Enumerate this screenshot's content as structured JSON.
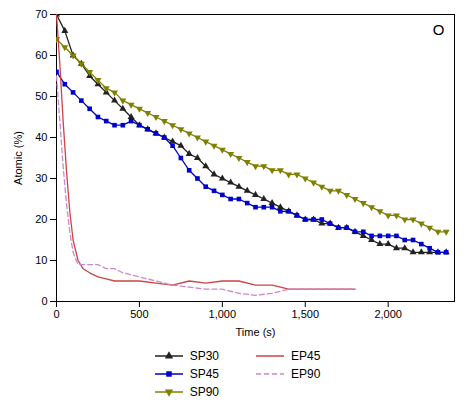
{
  "chart_data": {
    "type": "line",
    "annotation": "O",
    "xlabel": "Time (s)",
    "ylabel": "Atomic (%)",
    "xlim": [
      0,
      2400
    ],
    "ylim": [
      0,
      70
    ],
    "xticks": [
      0,
      500,
      1000,
      1500,
      2000
    ],
    "yticks": [
      0,
      10,
      20,
      30,
      40,
      50,
      60,
      70
    ],
    "grid": false,
    "legend": "bottom",
    "series": [
      {
        "name": "SP30",
        "color": "#222222",
        "marker": "triangle-up",
        "line_style": "solid",
        "x": [
          0,
          50,
          100,
          150,
          200,
          250,
          300,
          350,
          400,
          450,
          500,
          550,
          600,
          650,
          700,
          750,
          800,
          850,
          900,
          950,
          1000,
          1050,
          1100,
          1150,
          1200,
          1250,
          1300,
          1350,
          1400,
          1450,
          1500,
          1550,
          1600,
          1650,
          1700,
          1750,
          1800,
          1850,
          1900,
          1950,
          2000,
          2050,
          2100,
          2150,
          2200,
          2250,
          2300,
          2350
        ],
        "values": [
          70,
          66,
          60,
          58,
          55,
          53,
          51,
          49,
          47,
          45,
          43,
          42,
          41,
          40,
          39,
          38,
          36,
          35,
          33,
          31,
          30,
          29,
          28,
          27,
          26,
          25,
          24,
          23,
          22,
          21,
          20,
          20,
          19,
          19,
          18,
          18,
          17,
          16,
          15,
          14,
          14,
          13,
          13,
          12,
          12,
          12,
          12,
          12
        ]
      },
      {
        "name": "SP45",
        "color": "#0000cc",
        "marker": "square",
        "line_style": "solid",
        "x": [
          0,
          50,
          100,
          150,
          200,
          250,
          300,
          350,
          400,
          450,
          500,
          550,
          600,
          650,
          700,
          750,
          800,
          850,
          900,
          950,
          1000,
          1050,
          1100,
          1150,
          1200,
          1250,
          1300,
          1350,
          1400,
          1450,
          1500,
          1550,
          1600,
          1650,
          1700,
          1750,
          1800,
          1850,
          1900,
          1950,
          2000,
          2050,
          2100,
          2150,
          2200,
          2250,
          2300,
          2350
        ],
        "values": [
          56,
          53,
          51,
          49,
          47,
          45,
          44,
          43,
          43,
          44,
          43,
          42,
          41,
          40,
          38,
          35,
          32,
          30,
          28,
          27,
          26,
          25,
          25,
          24,
          23,
          23,
          23,
          22,
          22,
          21,
          20,
          20,
          20,
          19,
          18,
          18,
          17,
          17,
          16,
          16,
          16,
          16,
          15,
          15,
          14,
          13,
          12,
          12
        ]
      },
      {
        "name": "SP90",
        "color": "#808000",
        "marker": "triangle-down",
        "line_style": "solid",
        "x": [
          0,
          50,
          100,
          150,
          200,
          250,
          300,
          350,
          400,
          450,
          500,
          550,
          600,
          650,
          700,
          750,
          800,
          850,
          900,
          950,
          1000,
          1050,
          1100,
          1150,
          1200,
          1250,
          1300,
          1350,
          1400,
          1450,
          1500,
          1550,
          1600,
          1650,
          1700,
          1750,
          1800,
          1850,
          1900,
          1950,
          2000,
          2050,
          2100,
          2150,
          2200,
          2250,
          2300,
          2350
        ],
        "values": [
          64,
          62,
          60,
          58,
          56,
          54,
          52,
          51,
          49,
          48,
          47,
          46,
          45,
          44,
          43,
          42,
          41,
          40,
          39,
          38,
          37,
          36,
          35,
          34,
          33,
          33,
          32,
          32,
          31,
          31,
          30,
          29,
          28,
          27,
          27,
          26,
          25,
          24,
          23,
          22,
          21,
          21,
          20,
          20,
          19,
          18,
          17,
          17
        ]
      },
      {
        "name": "EP45",
        "color": "#cc4444",
        "marker": "none",
        "line_style": "solid",
        "x": [
          0,
          20,
          40,
          60,
          80,
          100,
          130,
          160,
          200,
          250,
          300,
          350,
          400,
          450,
          500,
          600,
          700,
          800,
          900,
          1000,
          1100,
          1200,
          1300,
          1400,
          1500,
          1600,
          1700,
          1800
        ],
        "values": [
          70,
          58,
          44,
          32,
          22,
          15,
          10,
          8,
          7,
          6,
          5.5,
          5,
          5,
          5,
          5,
          4.5,
          4,
          5,
          4.5,
          5,
          5,
          4,
          4,
          3,
          3,
          3,
          3,
          3
        ]
      },
      {
        "name": "EP90",
        "color": "#cc88cc",
        "marker": "none",
        "line_style": "dashed",
        "x": [
          0,
          20,
          40,
          60,
          80,
          100,
          130,
          160,
          200,
          250,
          300,
          350,
          400,
          450,
          500,
          600,
          700,
          800,
          900,
          1000,
          1100,
          1200,
          1300,
          1400,
          1500,
          1600,
          1700,
          1800
        ],
        "values": [
          55,
          44,
          33,
          24,
          17,
          12,
          9,
          9,
          9,
          9,
          8,
          8,
          7,
          6.5,
          6,
          5,
          4,
          3.5,
          3,
          3,
          2,
          1.5,
          2,
          3,
          3,
          3,
          3,
          3
        ]
      }
    ]
  }
}
